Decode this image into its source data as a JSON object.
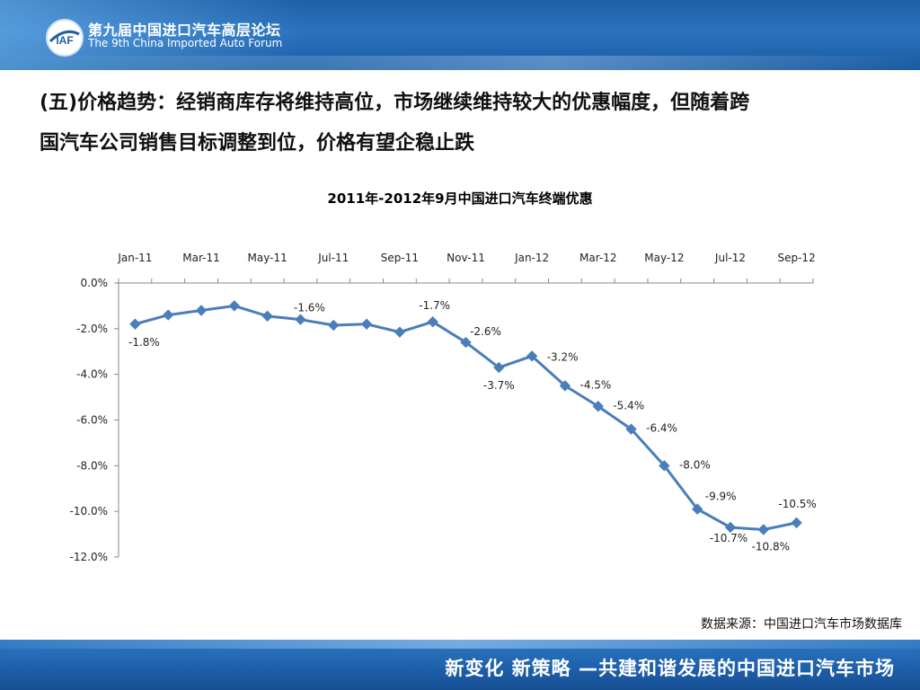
{
  "header": {
    "forum_title_cn": "第九届中国进口汽车高层论坛",
    "forum_title_en": "The 9th China Imported Auto Forum",
    "logo_text": "IAF"
  },
  "headline": {
    "line1": "(五)价格趋势：经销商库存将维持高位，市场继续维持较大的优惠幅度，但随着跨",
    "line2": "国汽车公司销售目标调整到位，价格有望企稳止跌"
  },
  "source_note": "数据来源：中国进口汽车市场数据库",
  "footer": {
    "slogan": "新变化  新策略 —共建和谐发展的中国进口汽车市场"
  },
  "chart_data": {
    "type": "line",
    "title": "2011年-2012年9月中国进口汽车终端优惠",
    "x": [
      "Jan-11",
      "Feb-11",
      "Mar-11",
      "Apr-11",
      "May-11",
      "Jun-11",
      "Jul-11",
      "Aug-11",
      "Sep-11",
      "Oct-11",
      "Nov-11",
      "Dec-11",
      "Jan-12",
      "Feb-12",
      "Mar-12",
      "Apr-12",
      "May-12",
      "Jun-12",
      "Jul-12",
      "Aug-12",
      "Sep-12"
    ],
    "tick_labels": [
      "Jan-11",
      "Mar-11",
      "May-11",
      "Jul-11",
      "Sep-11",
      "Nov-11",
      "Jan-12",
      "Mar-12",
      "May-12",
      "Jul-12",
      "Sep-12"
    ],
    "series": [
      {
        "values": [
          -1.8,
          -1.4,
          -1.2,
          -1.0,
          -1.45,
          -1.6,
          -1.85,
          -1.8,
          -2.15,
          -1.7,
          -2.6,
          -3.7,
          -3.2,
          -4.5,
          -5.4,
          -6.4,
          -8.0,
          -9.9,
          -10.7,
          -10.8,
          -10.5
        ]
      }
    ],
    "data_labels": [
      {
        "index": 0,
        "text": "-1.8%"
      },
      {
        "index": 5,
        "text": "-1.6%"
      },
      {
        "index": 9,
        "text": "-1.7%"
      },
      {
        "index": 10,
        "text": "-2.6%"
      },
      {
        "index": 11,
        "text": "-3.7%"
      },
      {
        "index": 12,
        "text": "-3.2%"
      },
      {
        "index": 13,
        "text": "-4.5%"
      },
      {
        "index": 14,
        "text": "-5.4%"
      },
      {
        "index": 15,
        "text": "-6.4%"
      },
      {
        "index": 16,
        "text": "-8.0%"
      },
      {
        "index": 17,
        "text": "-9.9%"
      },
      {
        "index": 18,
        "text": "-10.7%"
      },
      {
        "index": 19,
        "text": "-10.8%"
      },
      {
        "index": 20,
        "text": "-10.5%"
      }
    ],
    "y_ticks": [
      "0.0%",
      "-2.0%",
      "-4.0%",
      "-6.0%",
      "-8.0%",
      "-10.0%",
      "-12.0%"
    ],
    "ylim": [
      -12,
      0
    ],
    "x_axis_position": "top",
    "grid": false,
    "legend": "none",
    "line_color": "#4a7ebb"
  }
}
